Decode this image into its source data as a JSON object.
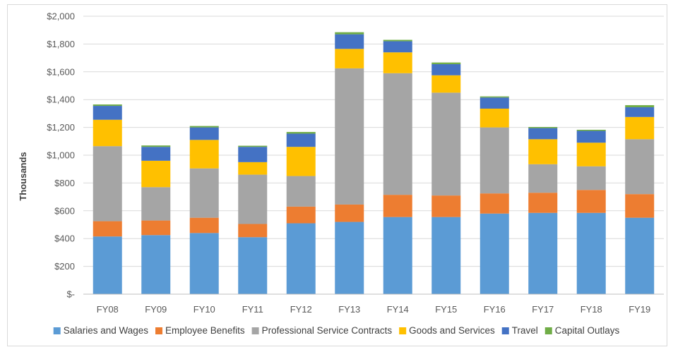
{
  "chart_data": {
    "type": "bar",
    "stacked": true,
    "categories": [
      "FY08",
      "FY09",
      "FY10",
      "FY11",
      "FY12",
      "FY13",
      "FY14",
      "FY15",
      "FY16",
      "FY17",
      "FY18",
      "FY19"
    ],
    "series": [
      {
        "name": "Salaries and Wages",
        "color": "#5b9bd5",
        "values": [
          415,
          425,
          440,
          410,
          510,
          520,
          555,
          555,
          580,
          585,
          585,
          550
        ]
      },
      {
        "name": "Employee Benefits",
        "color": "#ed7d31",
        "values": [
          110,
          105,
          110,
          95,
          120,
          125,
          160,
          155,
          145,
          145,
          165,
          170
        ]
      },
      {
        "name": "Professional Service Contracts",
        "color": "#a5a5a5",
        "values": [
          540,
          240,
          355,
          355,
          220,
          980,
          875,
          740,
          475,
          205,
          170,
          395
        ]
      },
      {
        "name": "Goods and Services",
        "color": "#ffc000",
        "values": [
          190,
          190,
          205,
          90,
          210,
          140,
          150,
          125,
          135,
          180,
          170,
          160
        ]
      },
      {
        "name": "Travel",
        "color": "#4472c4",
        "values": [
          100,
          100,
          90,
          110,
          95,
          105,
          80,
          80,
          80,
          80,
          85,
          70
        ]
      },
      {
        "name": "Capital Outlays",
        "color": "#70ad47",
        "values": [
          10,
          10,
          10,
          8,
          12,
          15,
          10,
          12,
          8,
          8,
          8,
          15
        ]
      }
    ],
    "y_tick_labels": [
      "$-",
      "$200",
      "$400",
      "$600",
      "$800",
      "$1,000",
      "$1,200",
      "$1,400",
      "$1,600",
      "$1,800",
      "$2,000"
    ],
    "ylabel": "Thousands",
    "xlabel": "",
    "title": "",
    "ylim": [
      0,
      2000
    ],
    "y_step": 200,
    "grid": true,
    "legend_position": "bottom"
  }
}
